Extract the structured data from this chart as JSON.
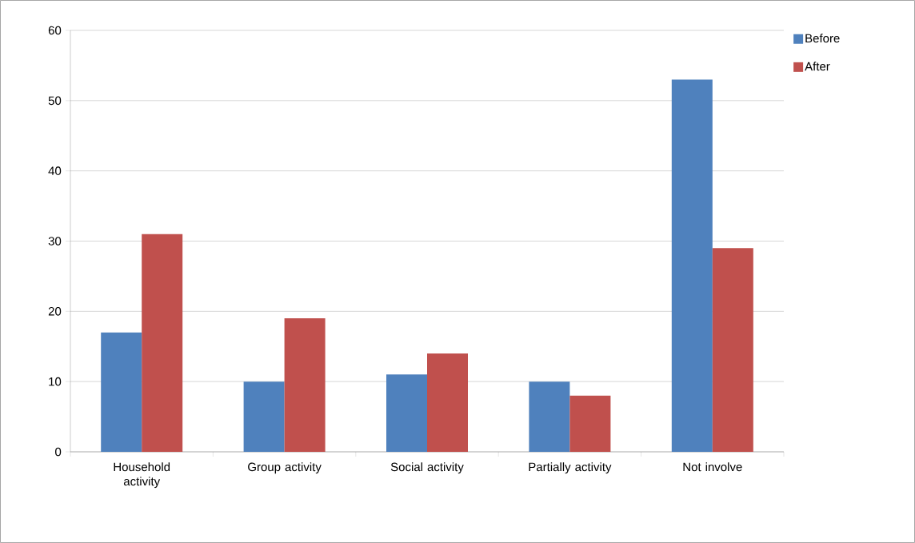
{
  "chart_data": {
    "type": "bar",
    "categories": [
      "Household activity",
      "Group activity",
      "Social activity",
      "Partially activity",
      "Not involve"
    ],
    "series": [
      {
        "name": "Before",
        "color": "#4f81bd",
        "values": [
          17,
          10,
          11,
          10,
          53
        ]
      },
      {
        "name": "After",
        "color": "#c0504d",
        "values": [
          31,
          19,
          14,
          8,
          29
        ]
      }
    ],
    "ylim": [
      0,
      60
    ],
    "yticks": [
      0,
      10,
      20,
      30,
      40,
      50,
      60
    ],
    "grid": "y",
    "legend": "top right"
  }
}
